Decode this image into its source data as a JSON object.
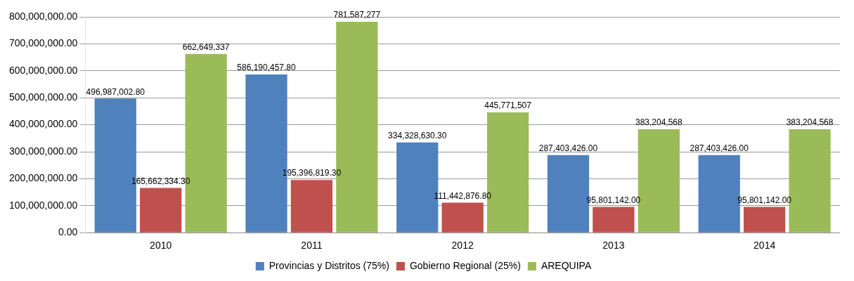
{
  "chart_data": {
    "type": "bar",
    "categories": [
      "2010",
      "2011",
      "2012",
      "2013",
      "2014"
    ],
    "ylim": [
      0,
      800000000
    ],
    "yticks": [
      {
        "value": 0,
        "label": "0.00"
      },
      {
        "value": 100000000,
        "label": "100,000,000.00"
      },
      {
        "value": 200000000,
        "label": "200,000,000.00"
      },
      {
        "value": 300000000,
        "label": "300,000,000.00"
      },
      {
        "value": 400000000,
        "label": "400,000,000.00"
      },
      {
        "value": 500000000,
        "label": "500,000,000.00"
      },
      {
        "value": 600000000,
        "label": "600,000,000.00"
      },
      {
        "value": 700000000,
        "label": "700,000,000.00"
      },
      {
        "value": 800000000,
        "label": "800,000,000.00"
      }
    ],
    "grid": "y",
    "legend": "bottom",
    "series": [
      {
        "name": "Provincias y Distritos (75%)",
        "color": "#4f81bd",
        "values": [
          496987002.8,
          586190457.8,
          334328630.3,
          287403426,
          287403426
        ],
        "value_labels": [
          "496,987,002.80",
          "586,190,457.80",
          "334,328,630.30",
          "287,403,426.00",
          "287,403,426.00"
        ]
      },
      {
        "name": "Gobierno Regional (25%)",
        "color": "#c0504d",
        "values": [
          165662334.3,
          195396819.3,
          111442876.8,
          95801142,
          95801142
        ],
        "value_labels": [
          "165,662,334.30",
          "195,396,819.30",
          "111,442,876.80",
          "95,801,142.00",
          "95,801,142.00"
        ]
      },
      {
        "name": "AREQUIPA",
        "color": "#9bbb59",
        "values": [
          662649337,
          781587277,
          445771507,
          383204568,
          383204568
        ],
        "value_labels": [
          "662,649,337",
          "781,587,277",
          "445,771,507",
          "383,204,568",
          "383,204,568"
        ]
      }
    ]
  }
}
